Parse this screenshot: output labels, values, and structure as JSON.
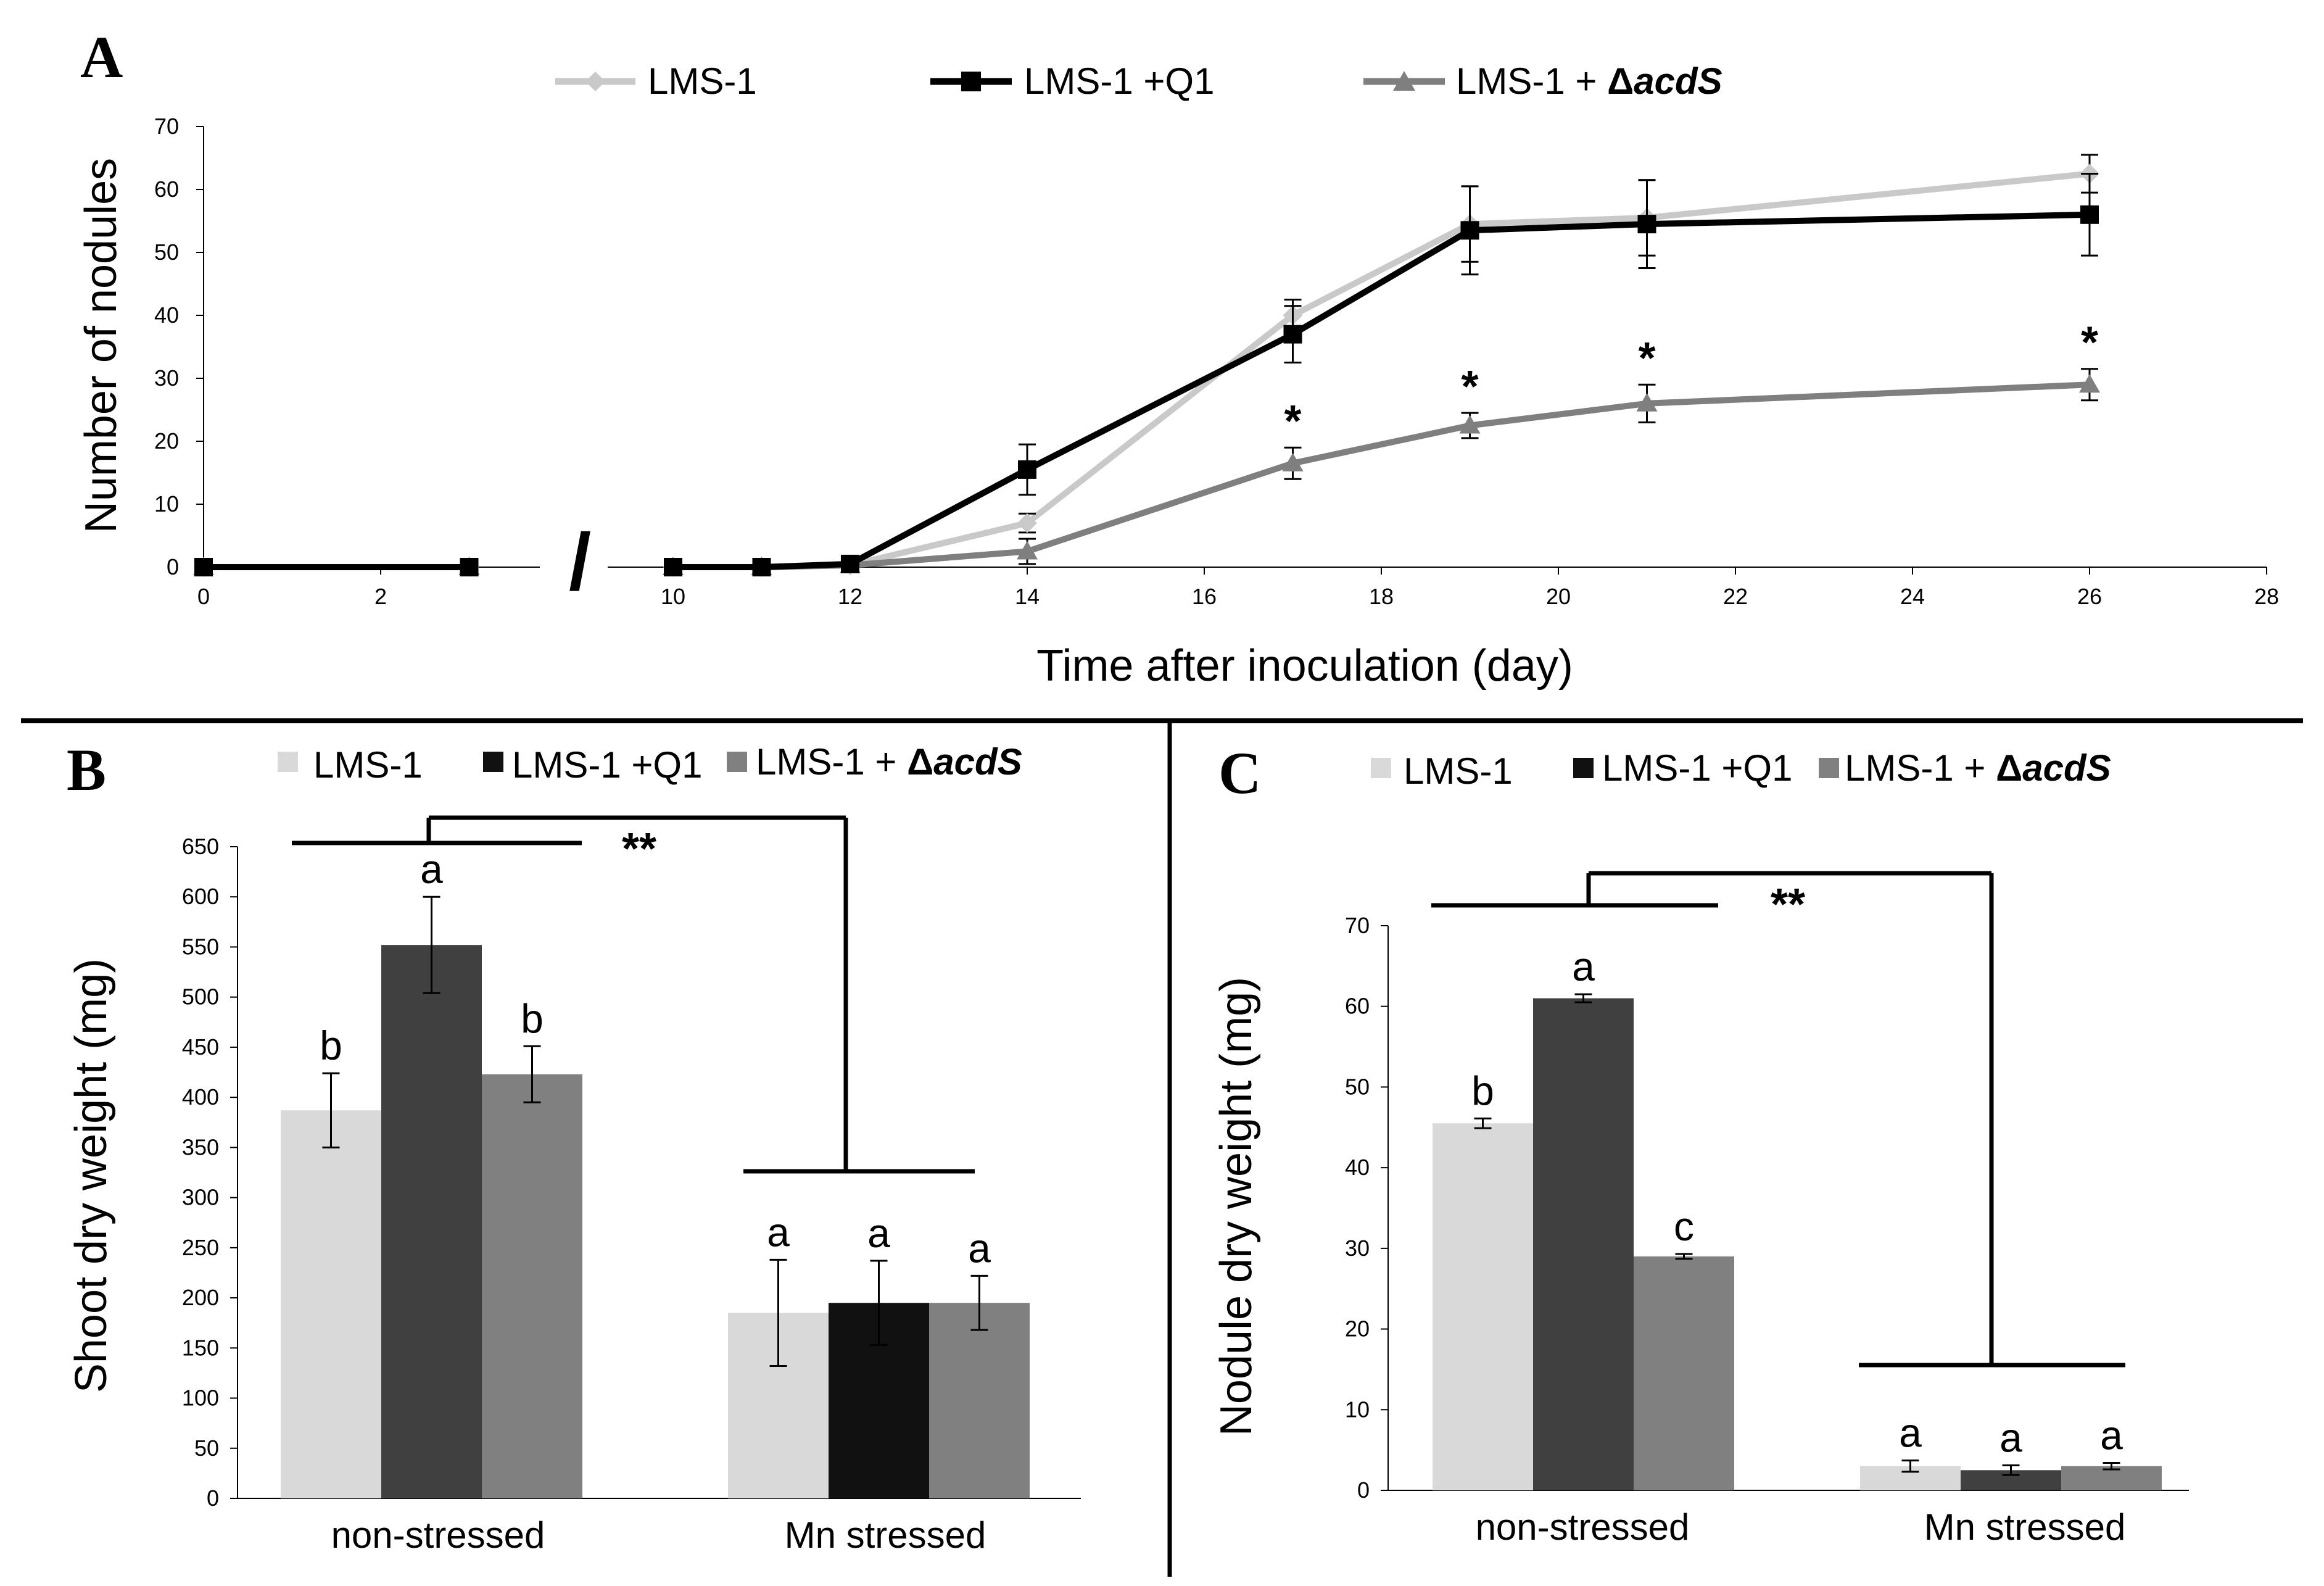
{
  "colors": {
    "lms1": "#c9c9c9",
    "lms1_q1": "#000000",
    "lms1_acds": "#7f7f7f",
    "bar_lms1": "#d9d9d9",
    "bar_q1_nonstressed": "#404040",
    "bar_q1_stressed": "#111111",
    "bar_acds": "#808080",
    "divider": "#000000"
  },
  "chart_data": [
    {
      "panel": "A",
      "type": "line",
      "xlabel": "Time after inoculation (day)",
      "ylabel": "Number of nodules",
      "xlim": [
        0,
        28
      ],
      "ylim": [
        0,
        70
      ],
      "xticks": [
        "0",
        "2",
        "10",
        "12",
        "14",
        "16",
        "18",
        "20",
        "22",
        "24",
        "26",
        "28"
      ],
      "yticks": [
        "0",
        "10",
        "20",
        "30",
        "40",
        "50",
        "60",
        "70"
      ],
      "axis_break": "/",
      "legend": {
        "placement": "top",
        "entries": [
          {
            "text": "LMS-1",
            "marker": "diamond"
          },
          {
            "text": "LMS-1 +Q1",
            "marker": "square"
          },
          {
            "pre": "LMS-1 + ",
            "delta": "Δ",
            "ital": "acdS",
            "marker": "triangle"
          }
        ]
      },
      "series": [
        {
          "name": "LMS-1",
          "marker": "diamond",
          "x": [
            0,
            3,
            10,
            11,
            12,
            14,
            17,
            19,
            21,
            26
          ],
          "y": [
            0,
            0,
            0,
            0,
            0.3,
            7,
            40,
            54.5,
            55.5,
            62.5
          ],
          "err": [
            0,
            0,
            0,
            0,
            0.3,
            1.5,
            2.5,
            6,
            6,
            3
          ]
        },
        {
          "name": "LMS-1 +Q1",
          "marker": "square",
          "x": [
            0,
            3,
            10,
            11,
            12,
            14,
            17,
            19,
            21,
            26
          ],
          "y": [
            0,
            0,
            0,
            0,
            0.5,
            15.5,
            37,
            53.5,
            54.5,
            56
          ],
          "err": [
            0,
            0,
            0,
            0,
            0.5,
            4,
            4.5,
            7,
            7,
            6.5
          ]
        },
        {
          "name": "LMS-1 + ΔacdS",
          "marker": "triangle",
          "x": [
            0,
            3,
            10,
            11,
            12,
            14,
            17,
            19,
            21,
            26
          ],
          "y": [
            0,
            0,
            0,
            0,
            0.3,
            2.5,
            16.5,
            22.5,
            26,
            29
          ],
          "err": [
            0,
            0,
            0,
            0,
            0.3,
            2,
            2.5,
            2,
            3,
            2.5
          ]
        }
      ],
      "significance": [
        {
          "x": 17,
          "label": "*"
        },
        {
          "x": 19,
          "label": "*"
        },
        {
          "x": 21,
          "label": "*"
        },
        {
          "x": 26,
          "label": "*"
        }
      ]
    },
    {
      "panel": "B",
      "type": "bar",
      "ylabel": "Shoot dry weight (mg)",
      "categories": [
        "non-stressed",
        "Mn stressed"
      ],
      "ylim": [
        0,
        650
      ],
      "yticks": [
        "0",
        "50",
        "100",
        "150",
        "200",
        "250",
        "300",
        "350",
        "400",
        "450",
        "500",
        "550",
        "600",
        "650"
      ],
      "legend": {
        "placement": "top",
        "entries": [
          {
            "text": "LMS-1"
          },
          {
            "text": "LMS-1 +Q1"
          },
          {
            "pre": "LMS-1 + ",
            "delta": "Δ",
            "ital": "acdS"
          }
        ]
      },
      "series": [
        {
          "name": "LMS-1",
          "values": [
            387,
            185
          ],
          "err": [
            37,
            53
          ],
          "letters": [
            "b",
            "a"
          ]
        },
        {
          "name": "LMS-1 +Q1",
          "values": [
            552,
            195
          ],
          "err": [
            48,
            42
          ],
          "letters": [
            "a",
            "a"
          ]
        },
        {
          "name": "LMS-1 + ΔacdS",
          "values": [
            423,
            195
          ],
          "err": [
            28,
            27
          ],
          "letters": [
            "b",
            "a"
          ]
        }
      ],
      "significance": "**"
    },
    {
      "panel": "C",
      "type": "bar",
      "ylabel": "Nodule dry weight (mg)",
      "categories": [
        "non-stressed",
        "Mn stressed"
      ],
      "ylim": [
        0,
        70
      ],
      "yticks": [
        "0",
        "10",
        "20",
        "30",
        "40",
        "50",
        "60",
        "70"
      ],
      "legend": {
        "placement": "top",
        "entries": [
          {
            "text": "LMS-1"
          },
          {
            "text": "LMS-1 +Q1"
          },
          {
            "pre": "LMS-1 + ",
            "delta": "Δ",
            "ital": "acdS"
          }
        ]
      },
      "series": [
        {
          "name": "LMS-1",
          "values": [
            45.5,
            3
          ],
          "err": [
            0.6,
            0.7
          ],
          "letters": [
            "b",
            "a"
          ]
        },
        {
          "name": "LMS-1 +Q1",
          "values": [
            61,
            2.5
          ],
          "err": [
            0.5,
            0.6
          ],
          "letters": [
            "a",
            "a"
          ]
        },
        {
          "name": "LMS-1 + ΔacdS",
          "values": [
            29,
            3
          ],
          "err": [
            0.3,
            0.4
          ],
          "letters": [
            "c",
            "a"
          ]
        }
      ],
      "significance": "**"
    }
  ]
}
